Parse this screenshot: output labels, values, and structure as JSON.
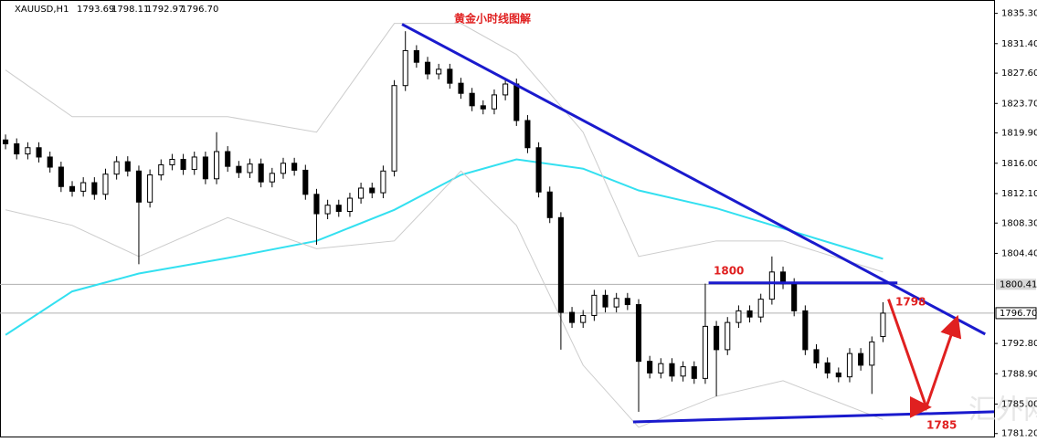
{
  "chart_data": {
    "type": "candlestick",
    "title": "黄金小时线图解",
    "symbol": "XAUUSD,H1",
    "header_values": [
      "1793.69",
      "1798.11",
      "1792.97",
      "1796.70"
    ],
    "watermark": "汇外网",
    "up_color": "#ffffff",
    "down_color": "#000000",
    "xlim": [
      -0.5,
      89
    ],
    "ylim": [
      1780.7,
      1836.9
    ],
    "yticks": [
      {
        "value": 1835.3,
        "label": "1835.30"
      },
      {
        "value": 1831.4,
        "label": "1831.40"
      },
      {
        "value": 1827.6,
        "label": "1827.60"
      },
      {
        "value": 1823.7,
        "label": "1823.70"
      },
      {
        "value": 1819.9,
        "label": "1819.90"
      },
      {
        "value": 1816,
        "label": "1816.00"
      },
      {
        "value": 1812.1,
        "label": "1812.10"
      },
      {
        "value": 1808.3,
        "label": "1808.30"
      },
      {
        "value": 1804.4,
        "label": "1804.40"
      },
      {
        "value": 1792.8,
        "label": "1792.80"
      },
      {
        "value": 1788.9,
        "label": "1788.90"
      },
      {
        "value": 1785,
        "label": "1785.00"
      },
      {
        "value": 1781.2,
        "label": "1781.20"
      }
    ],
    "price_lines": [
      {
        "value": 1800.41,
        "label": "1800.41"
      },
      {
        "value": 1796.7,
        "label": "1796.70"
      }
    ],
    "open": [
      1819.0,
      1818.5,
      1817.2,
      1818.0,
      1816.8,
      1815.5,
      1813.0,
      1812.4,
      1813.5,
      1812.0,
      1814.6,
      1816.2,
      1815.0,
      1811.0,
      1814.5,
      1815.8,
      1816.5,
      1815.2,
      1816.8,
      1814.0,
      1817.5,
      1815.6,
      1814.8,
      1815.9,
      1813.6,
      1814.7,
      1816.0,
      1815.1,
      1812.0,
      1809.5,
      1810.6,
      1809.8,
      1811.5,
      1812.8,
      1812.2,
      1815.0,
      1826.0,
      1830.5,
      1829.0,
      1827.5,
      1828.1,
      1826.3,
      1825.0,
      1823.4,
      1823.0,
      1824.8,
      1826.2,
      1821.5,
      1818.0,
      1812.3,
      1809.0,
      1796.8,
      1795.5,
      1796.4,
      1799.0,
      1797.5,
      1798.6,
      1797.8,
      1790.5,
      1789.0,
      1790.2,
      1788.6,
      1789.8,
      1788.3,
      1795.0,
      1792.0,
      1795.5,
      1797.0,
      1796.2,
      1798.5,
      1802.0,
      1800.5,
      1797.0,
      1792.0,
      1790.3,
      1789.0,
      1788.5,
      1791.5,
      1790.0,
      1793.69
    ],
    "high": [
      1819.7,
      1819.2,
      1818.7,
      1818.7,
      1817.5,
      1816.2,
      1813.7,
      1814.2,
      1814.2,
      1815.3,
      1816.9,
      1816.9,
      1815.7,
      1815.2,
      1816.5,
      1817.2,
      1817.2,
      1817.5,
      1817.5,
      1820.0,
      1818.2,
      1816.3,
      1816.6,
      1816.6,
      1815.4,
      1816.7,
      1816.7,
      1815.8,
      1812.7,
      1811.3,
      1811.3,
      1812.2,
      1813.5,
      1813.5,
      1815.7,
      1826.7,
      1833.0,
      1831.2,
      1829.7,
      1828.8,
      1828.8,
      1827.0,
      1825.7,
      1824.1,
      1825.5,
      1826.9,
      1826.9,
      1822.2,
      1818.7,
      1813.0,
      1809.7,
      1797.5,
      1797.1,
      1799.7,
      1799.7,
      1799.3,
      1799.3,
      1798.5,
      1791.2,
      1790.9,
      1790.9,
      1790.5,
      1790.5,
      1800.5,
      1795.7,
      1796.2,
      1797.7,
      1797.7,
      1799.2,
      1804.0,
      1802.7,
      1801.2,
      1797.7,
      1792.7,
      1791.0,
      1789.7,
      1792.2,
      1792.2,
      1793.7,
      1798.11
    ],
    "low": [
      1817.8,
      1816.5,
      1816.5,
      1816.1,
      1814.8,
      1812.3,
      1811.7,
      1811.7,
      1811.3,
      1811.3,
      1813.9,
      1814.3,
      1803.0,
      1810.3,
      1813.8,
      1815.1,
      1814.5,
      1814.5,
      1813.3,
      1813.3,
      1814.9,
      1814.1,
      1814.1,
      1812.9,
      1812.9,
      1814.0,
      1814.4,
      1811.3,
      1805.5,
      1808.8,
      1809.1,
      1809.1,
      1810.8,
      1811.5,
      1811.5,
      1814.3,
      1825.3,
      1828.3,
      1826.8,
      1826.8,
      1825.6,
      1824.3,
      1822.7,
      1822.3,
      1822.3,
      1824.1,
      1820.8,
      1817.3,
      1811.6,
      1808.3,
      1792.0,
      1794.8,
      1794.8,
      1795.7,
      1796.8,
      1796.8,
      1797.1,
      1784.0,
      1788.3,
      1788.3,
      1787.9,
      1787.9,
      1787.6,
      1787.6,
      1786.0,
      1791.3,
      1794.8,
      1795.5,
      1795.5,
      1797.8,
      1799.8,
      1796.3,
      1791.3,
      1789.6,
      1788.3,
      1787.8,
      1787.8,
      1789.3,
      1786.3,
      1792.97
    ],
    "close": [
      1818.5,
      1817.2,
      1818.0,
      1816.8,
      1815.5,
      1813.0,
      1812.4,
      1813.5,
      1812.0,
      1814.6,
      1816.2,
      1815.0,
      1811.0,
      1814.5,
      1815.8,
      1816.5,
      1815.2,
      1816.8,
      1814.0,
      1817.5,
      1815.6,
      1814.8,
      1815.9,
      1813.6,
      1814.7,
      1816.0,
      1815.1,
      1812.0,
      1809.5,
      1810.6,
      1809.8,
      1811.5,
      1812.8,
      1812.2,
      1815.0,
      1826.0,
      1830.5,
      1829.0,
      1827.5,
      1828.1,
      1826.3,
      1825.0,
      1823.4,
      1823.0,
      1824.8,
      1826.2,
      1821.5,
      1818.0,
      1812.3,
      1809.0,
      1796.8,
      1795.5,
      1796.4,
      1799.0,
      1797.5,
      1798.6,
      1797.8,
      1790.5,
      1789.0,
      1790.2,
      1788.6,
      1789.8,
      1788.3,
      1795.0,
      1792.0,
      1795.5,
      1797.0,
      1796.2,
      1798.5,
      1802.0,
      1800.5,
      1797.0,
      1792.0,
      1790.3,
      1789.0,
      1788.5,
      1791.5,
      1790.0,
      1793.0,
      1796.7
    ],
    "overlays": [
      {
        "color": "#33e0f0",
        "x": [
          0,
          6,
          12,
          20,
          28,
          35,
          41,
          46,
          52,
          57,
          64,
          70,
          79
        ],
        "values": [
          1793.9,
          1799.5,
          1801.8,
          1803.8,
          1806.0,
          1810.0,
          1814.5,
          1816.5,
          1815.3,
          1812.5,
          1810.2,
          1807.6,
          1803.7
        ]
      },
      {
        "color": "#cccccc",
        "x": [
          0,
          6,
          12,
          20,
          28,
          35,
          41,
          46,
          52,
          57,
          64,
          70,
          79
        ],
        "values": [
          1828,
          1822,
          1822,
          1822,
          1820,
          1834,
          1834,
          1830,
          1820,
          1804,
          1806,
          1806,
          1802
        ]
      },
      {
        "color": "#cccccc",
        "x": [
          0,
          6,
          12,
          20,
          28,
          35,
          41,
          46,
          52,
          57,
          64,
          70,
          79
        ],
        "values": [
          1810,
          1808,
          1804,
          1809,
          1805,
          1806,
          1815,
          1808,
          1790,
          1782,
          1786,
          1788,
          1783
        ]
      }
    ],
    "trendlines": [
      {
        "color": "#1a1acd",
        "x": [
          35.7,
          88.2
        ],
        "values": [
          1833.9,
          1794.0
        ]
      },
      {
        "color": "#1a1acd",
        "x": [
          63.3,
          80.3
        ],
        "values": [
          1800.6,
          1800.6
        ]
      },
      {
        "color": "#1a1acd",
        "x": [
          56.5,
          89
        ],
        "values": [
          1782.7,
          1784.0
        ]
      }
    ],
    "arrow": {
      "color": "#e02020",
      "x": [
        79.5,
        82.9,
        85.6
      ],
      "values": [
        1798.5,
        1784.6,
        1795.8
      ]
    },
    "annotations": [
      "1800",
      "1798",
      "1785"
    ]
  }
}
